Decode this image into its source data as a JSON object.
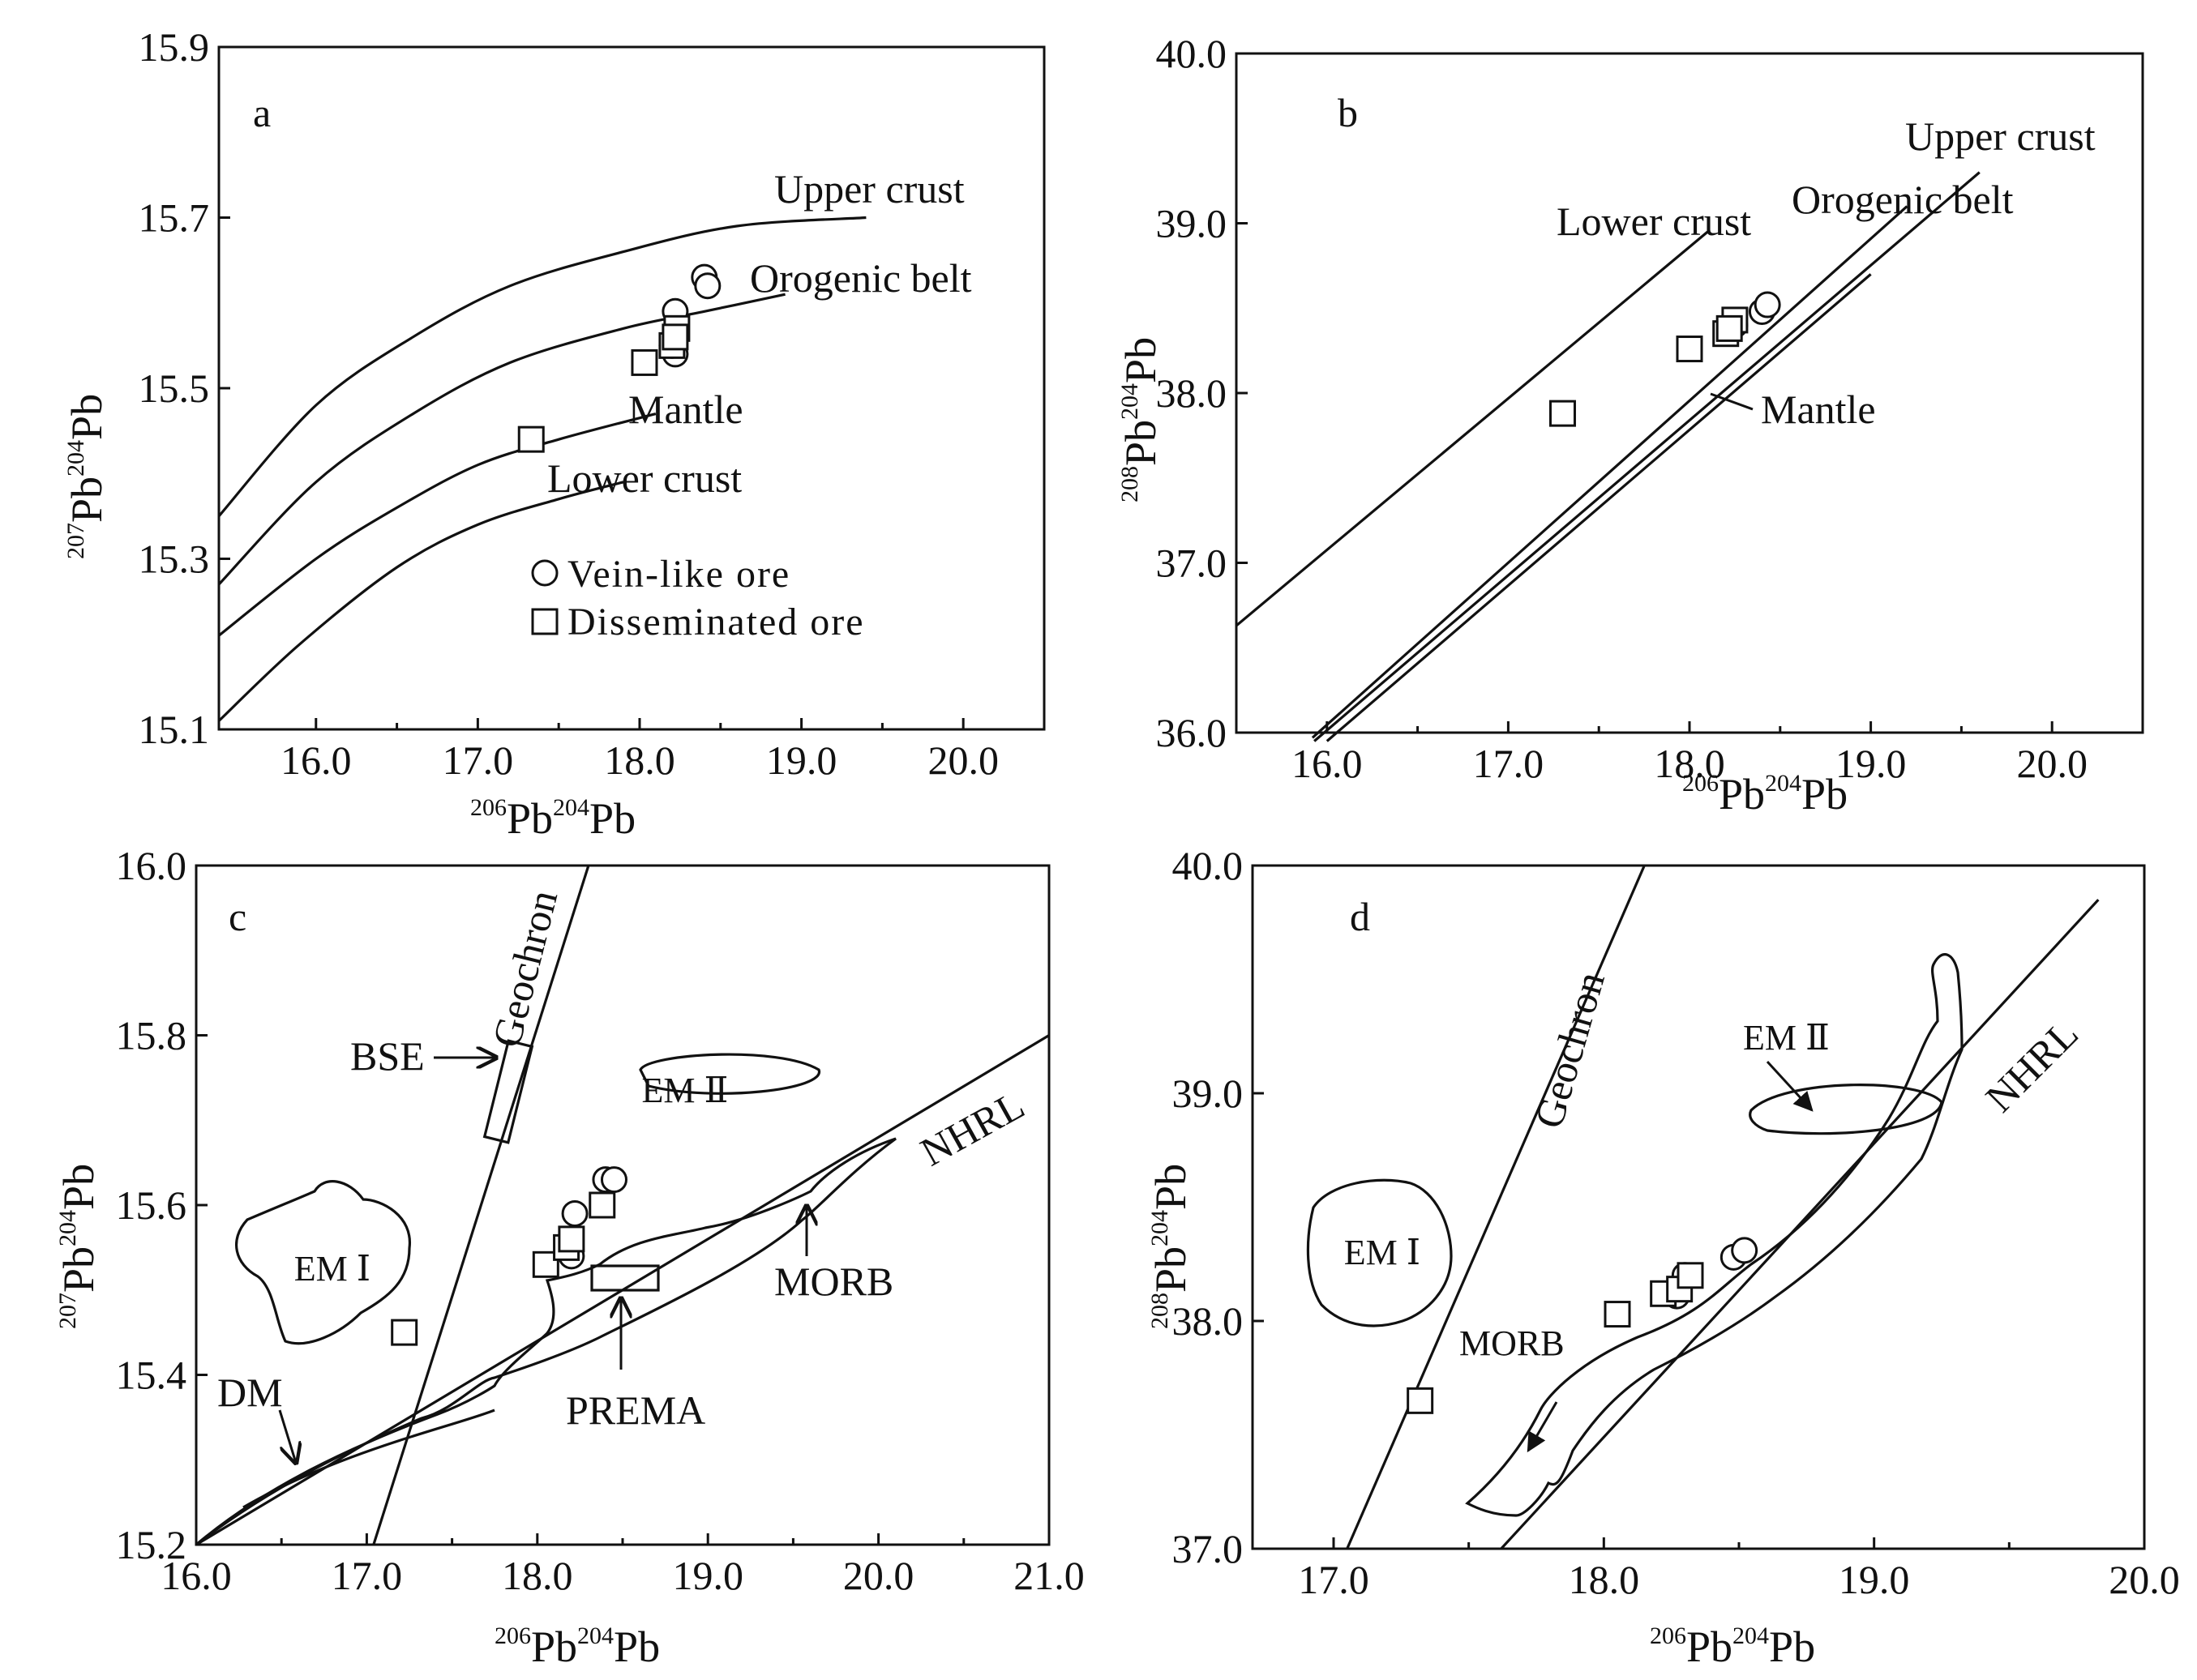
{
  "chart_data": [
    {
      "panel": "a",
      "type": "line",
      "xlabel": "206Pb/204Pb",
      "ylabel": "207Pb/204Pb",
      "xlim": [
        15.4,
        20.5
      ],
      "ylim": [
        15.1,
        15.9
      ],
      "xticks": [
        "16.0",
        "17.0",
        "18.0",
        "19.0",
        "20.0"
      ],
      "yticks": [
        "15.1",
        "15.3",
        "15.5",
        "15.7",
        "15.9"
      ],
      "curves": [
        {
          "name": "Upper crust",
          "x": [
            15.4,
            16.0,
            16.6,
            17.2,
            17.9,
            18.6,
            19.4
          ],
          "y": [
            15.35,
            15.48,
            15.56,
            15.62,
            15.66,
            15.69,
            15.7
          ]
        },
        {
          "name": "Orogenic belt",
          "x": [
            15.4,
            16.0,
            16.6,
            17.2,
            17.9,
            18.4,
            18.9
          ],
          "y": [
            15.27,
            15.39,
            15.47,
            15.53,
            15.57,
            15.59,
            15.61
          ]
        },
        {
          "name": "Mantle",
          "x": [
            15.4,
            16.0,
            16.5,
            17.0,
            17.5,
            18.1
          ],
          "y": [
            15.21,
            15.3,
            15.36,
            15.41,
            15.44,
            15.47
          ]
        },
        {
          "name": "Lower crust",
          "x": [
            15.4,
            15.9,
            16.5,
            17.0,
            17.5,
            17.9
          ],
          "y": [
            15.11,
            15.2,
            15.29,
            15.34,
            15.37,
            15.39
          ]
        }
      ],
      "series": [
        {
          "name": "Vein-like ore",
          "marker": "circle",
          "x": [
            18.22,
            18.22,
            18.2,
            18.4,
            18.42
          ],
          "y": [
            15.59,
            15.54,
            15.55,
            15.63,
            15.62
          ]
        },
        {
          "name": "Disseminated ore",
          "marker": "square",
          "x": [
            17.33,
            18.03,
            18.2,
            18.23,
            18.22
          ],
          "y": [
            15.44,
            15.53,
            15.55,
            15.57,
            15.56
          ]
        }
      ],
      "legend": [
        "Vein-like ore",
        "Disseminated ore"
      ]
    },
    {
      "panel": "b",
      "type": "line",
      "xlabel": "206Pb/204Pb",
      "ylabel": "208Pb/204Pb",
      "xlim": [
        15.5,
        20.5
      ],
      "ylim": [
        36.0,
        40.0
      ],
      "xticks": [
        "16.0",
        "17.0",
        "18.0",
        "19.0",
        "20.0"
      ],
      "yticks": [
        "36.0",
        "37.0",
        "38.0",
        "39.0",
        "40.0"
      ],
      "curves": [
        {
          "name": "Lower crust",
          "x": [
            15.5,
            18.1
          ],
          "y": [
            36.63,
            38.95
          ]
        },
        {
          "name": "Orogenic belt",
          "x": [
            15.92,
            19.2
          ],
          "y": [
            35.97,
            39.1
          ]
        },
        {
          "name": "Upper crust",
          "x": [
            15.93,
            19.6
          ],
          "y": [
            35.95,
            39.3
          ]
        },
        {
          "name": "Mantle",
          "x": [
            16.0,
            19.0
          ],
          "y": [
            35.95,
            38.7
          ]
        }
      ],
      "series": [
        {
          "name": "Vein-like ore",
          "marker": "circle",
          "x": [
            18.4,
            18.43,
            18.22,
            18.25
          ],
          "y": [
            38.48,
            38.52,
            38.37,
            38.4
          ]
        },
        {
          "name": "Disseminated ore",
          "marker": "square",
          "x": [
            17.3,
            18.0,
            18.2,
            18.25,
            18.22
          ],
          "y": [
            37.88,
            38.26,
            38.35,
            38.43,
            38.38
          ]
        }
      ]
    },
    {
      "panel": "c",
      "type": "line",
      "xlabel": "206Pb/204Pb",
      "ylabel": "207Pb/204Pb",
      "xlim": [
        16.0,
        21.0
      ],
      "ylim": [
        15.2,
        16.0
      ],
      "xticks": [
        "16.0",
        "17.0",
        "18.0",
        "19.0",
        "20.0",
        "21.0"
      ],
      "yticks": [
        "15.2",
        "15.4",
        "15.6",
        "15.8",
        "16.0"
      ],
      "lines": [
        {
          "name": "Geochron",
          "x": [
            17.04,
            18.3
          ],
          "y": [
            15.2,
            16.0
          ]
        },
        {
          "name": "NHRL",
          "x": [
            16.0,
            21.0
          ],
          "y": [
            15.2,
            15.8
          ]
        }
      ],
      "fields": [
        "BSE",
        "EM Ⅱ",
        "EM Ⅰ",
        "MORB",
        "PREMA",
        "DM"
      ],
      "series": [
        {
          "name": "Vein-like ore",
          "marker": "circle",
          "x": [
            18.2,
            18.22,
            18.4,
            18.45
          ],
          "y": [
            15.54,
            15.59,
            15.63,
            15.63
          ]
        },
        {
          "name": "Disseminated ore",
          "marker": "square",
          "x": [
            17.22,
            18.05,
            18.17,
            18.2,
            18.38
          ],
          "y": [
            15.45,
            15.53,
            15.55,
            15.56,
            15.6
          ]
        }
      ]
    },
    {
      "panel": "d",
      "type": "line",
      "xlabel": "206Pb/204Pb",
      "ylabel": "208Pb/204Pb",
      "xlim": [
        16.7,
        20.0
      ],
      "ylim": [
        37.0,
        40.0
      ],
      "xticks": [
        "17.0",
        "18.0",
        "19.0",
        "20.0"
      ],
      "yticks": [
        "37.0",
        "38.0",
        "39.0",
        "40.0"
      ],
      "lines": [
        {
          "name": "Geochron",
          "x": [
            17.05,
            18.15
          ],
          "y": [
            37.0,
            40.0
          ]
        },
        {
          "name": "NHRL",
          "x": [
            17.62,
            19.83
          ],
          "y": [
            37.0,
            39.85
          ]
        }
      ],
      "fields": [
        "EM Ⅱ",
        "EM Ⅰ",
        "MORB"
      ],
      "series": [
        {
          "name": "Vein-like ore",
          "marker": "circle",
          "x": [
            18.27,
            18.3,
            18.48,
            18.52
          ],
          "y": [
            38.11,
            38.2,
            38.28,
            38.31
          ]
        },
        {
          "name": "Disseminated ore",
          "marker": "square",
          "x": [
            17.32,
            18.05,
            18.22,
            18.28,
            18.32
          ],
          "y": [
            37.65,
            38.03,
            38.12,
            38.14,
            38.2
          ]
        }
      ]
    }
  ],
  "labels": {
    "a": "a",
    "b": "b",
    "c": "c",
    "d": "d",
    "pb": "Pb",
    "i206": "206",
    "i207": "207",
    "i208": "208",
    "i204": "204",
    "upper_crust": "Upper crust",
    "orogenic_belt": "Orogenic belt",
    "mantle": "Mantle",
    "lower_crust": "Lower crust",
    "vein": "Vein-like ore",
    "diss": "Disseminated ore",
    "geochron": "Geochron",
    "nhrl": "NHRL",
    "bse": "BSE",
    "em2": "EM Ⅱ",
    "em1": "EM Ⅰ",
    "morb": "MORB",
    "prema": "PREMA",
    "dm": "DM"
  }
}
